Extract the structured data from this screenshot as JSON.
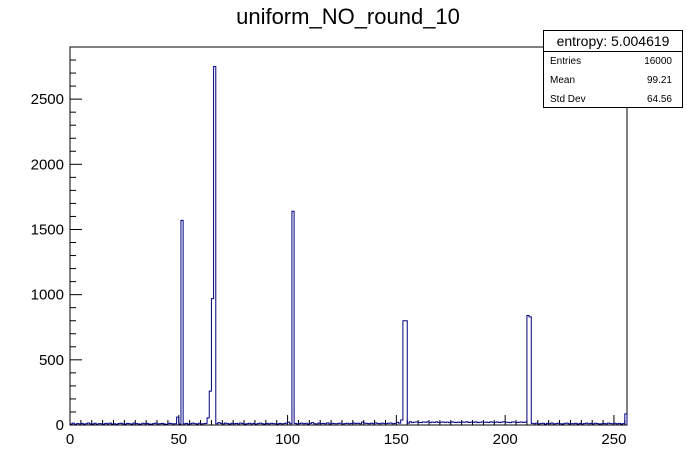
{
  "chart_data": {
    "type": "bar",
    "title": "uniform_NO_round_10",
    "xlabel": "",
    "ylabel": "",
    "xlim": [
      0,
      256
    ],
    "ylim": [
      0,
      2900
    ],
    "grid": false,
    "x_ticks": [
      0,
      50,
      100,
      150,
      200,
      250
    ],
    "y_ticks": [
      0,
      500,
      1000,
      1500,
      2000,
      2500
    ],
    "bin_width": 1,
    "line_color": "#000080",
    "spikes": [
      {
        "x": 51,
        "value": 1570
      },
      {
        "x": 63,
        "value": 55
      },
      {
        "x": 64,
        "value": 260
      },
      {
        "x": 65,
        "value": 970
      },
      {
        "x": 66,
        "value": 2750
      },
      {
        "x": 102,
        "value": 1640
      },
      {
        "x": 153,
        "value": 800
      },
      {
        "x": 154,
        "value": 800
      },
      {
        "x": 204,
        "value": 840
      },
      {
        "x": 205,
        "value": 830
      }
    ],
    "baseline_values": [
      8,
      14,
      6,
      11,
      9,
      12,
      7,
      10,
      15,
      9,
      8,
      13,
      6,
      11,
      10,
      7,
      12,
      9,
      14,
      8,
      10,
      6,
      11,
      13,
      9,
      7,
      12,
      10,
      8,
      15,
      11,
      9,
      6,
      13,
      10,
      12,
      8,
      7,
      11,
      14,
      9,
      10,
      12,
      8,
      6,
      13,
      11,
      9,
      10,
      60,
      8,
      1570,
      9,
      12,
      7,
      10,
      14,
      11,
      8,
      13,
      9,
      10,
      12,
      55,
      260,
      970,
      2750,
      10,
      18,
      12,
      9,
      14,
      11,
      8,
      13,
      10,
      12,
      9,
      15,
      11,
      8,
      10,
      13,
      9,
      12,
      7,
      11,
      14,
      10,
      8,
      12,
      9,
      13,
      11,
      10,
      8,
      12,
      9,
      11,
      14,
      22,
      10,
      1640,
      12,
      9,
      11,
      14,
      10,
      13,
      8,
      12,
      18,
      10,
      9,
      14,
      11,
      12,
      10,
      16,
      9,
      13,
      11,
      10,
      12,
      14,
      9,
      11,
      13,
      10,
      12,
      15,
      11,
      13,
      10,
      22,
      14,
      12,
      10,
      13,
      11,
      16,
      12,
      10,
      14,
      12,
      11,
      13,
      15,
      10,
      12,
      20,
      14,
      38,
      800,
      800,
      14,
      25,
      18,
      22,
      24,
      20,
      19,
      23,
      21,
      25,
      18,
      22,
      20,
      24,
      19,
      21,
      23,
      20,
      22,
      18,
      24,
      21,
      19,
      22,
      20,
      23,
      21,
      25,
      19,
      22,
      20,
      24,
      18,
      21,
      23,
      20,
      22,
      19,
      24,
      21,
      20,
      23,
      19,
      22,
      25,
      21,
      20,
      18,
      24,
      22,
      19,
      21,
      23,
      20,
      22,
      840,
      830,
      12,
      10,
      14,
      9,
      11,
      13,
      8,
      12,
      10,
      15,
      9,
      11,
      13,
      10,
      8,
      12,
      14,
      9,
      11,
      10,
      13,
      8,
      12,
      9,
      11,
      14,
      10,
      12,
      9,
      13,
      11,
      8,
      10,
      12,
      9,
      14,
      11,
      10,
      13,
      9,
      12,
      8,
      11,
      85,
      10,
      12,
      9,
      11,
      13,
      10,
      12
    ]
  },
  "stats": {
    "title": "entropy: 5.004619",
    "rows": [
      {
        "label": "Entries",
        "value": "16000"
      },
      {
        "label": "Mean",
        "value": "99.21"
      },
      {
        "label": "Std Dev",
        "value": "64.56"
      }
    ]
  }
}
